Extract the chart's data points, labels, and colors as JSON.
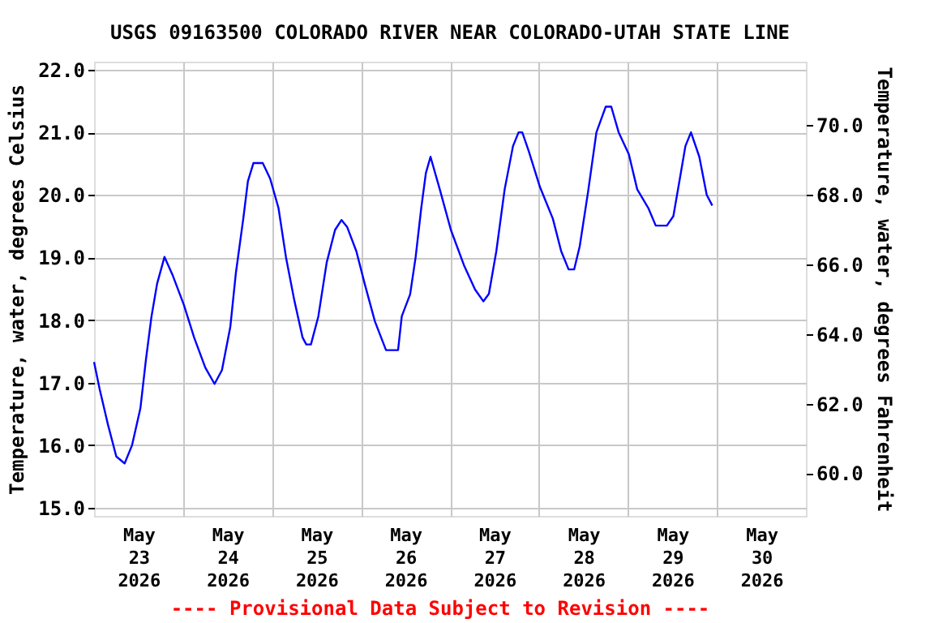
{
  "chart_data": {
    "type": "line",
    "title": "USGS 09163500 COLORADO RIVER NEAR COLORADO-UTAH STATE LINE",
    "xlabel": null,
    "ylabel": "Temperature, water, degrees Celsius",
    "y2label": "Temperature, water, degrees Fahrenheit",
    "x": [
      "2026-05-23T00:00",
      "2026-05-23T01:30",
      "2026-05-23T03:45",
      "2026-05-23T06:00",
      "2026-05-23T08:15",
      "2026-05-23T10:15",
      "2026-05-23T12:30",
      "2026-05-23T14:00",
      "2026-05-23T15:30",
      "2026-05-23T17:00",
      "2026-05-23T19:00",
      "2026-05-23T21:15",
      "2026-05-24T00:15",
      "2026-05-24T03:00",
      "2026-05-24T06:00",
      "2026-05-24T08:30",
      "2026-05-24T10:30",
      "2026-05-24T12:45",
      "2026-05-24T14:15",
      "2026-05-24T16:15",
      "2026-05-24T17:30",
      "2026-05-24T19:00",
      "2026-05-24T21:30",
      "2026-05-24T23:30",
      "2026-05-25T01:45",
      "2026-05-25T03:45",
      "2026-05-25T06:00",
      "2026-05-25T08:15",
      "2026-05-25T09:15",
      "2026-05-25T10:30",
      "2026-05-25T12:30",
      "2026-05-25T14:45",
      "2026-05-25T17:00",
      "2026-05-25T18:45",
      "2026-05-25T20:15",
      "2026-05-25T22:45",
      "2026-05-26T01:00",
      "2026-05-26T03:45",
      "2026-05-26T06:45",
      "2026-05-26T10:00",
      "2026-05-26T11:00",
      "2026-05-26T13:15",
      "2026-05-26T14:45",
      "2026-05-26T16:15",
      "2026-05-26T17:30",
      "2026-05-26T18:45",
      "2026-05-26T21:15",
      "2026-05-27T00:15",
      "2026-05-27T03:45",
      "2026-05-27T06:45",
      "2026-05-27T09:00",
      "2026-05-27T10:30",
      "2026-05-27T12:30",
      "2026-05-27T14:45",
      "2026-05-27T17:00",
      "2026-05-27T18:30",
      "2026-05-27T19:30",
      "2026-05-27T21:15",
      "2026-05-28T00:15",
      "2026-05-28T03:45",
      "2026-05-28T06:00",
      "2026-05-28T08:00",
      "2026-05-28T09:30",
      "2026-05-28T11:00",
      "2026-05-28T13:15",
      "2026-05-28T15:30",
      "2026-05-28T18:00",
      "2026-05-28T19:30",
      "2026-05-28T21:30",
      "2026-05-29T00:15",
      "2026-05-29T02:30",
      "2026-05-29T05:30",
      "2026-05-29T07:30",
      "2026-05-29T10:30",
      "2026-05-29T12:15",
      "2026-05-29T14:00",
      "2026-05-29T15:30",
      "2026-05-29T17:00",
      "2026-05-29T19:15",
      "2026-05-29T21:15",
      "2026-05-29T22:45"
    ],
    "series": [
      {
        "color": "#0000ff",
        "values": [
          17.33,
          16.9,
          16.33,
          15.82,
          15.71,
          16.0,
          16.59,
          17.37,
          18.06,
          18.58,
          19.01,
          18.71,
          18.24,
          17.72,
          17.24,
          16.98,
          17.2,
          17.89,
          18.75,
          19.62,
          20.22,
          20.51,
          20.51,
          20.26,
          19.79,
          19.01,
          18.32,
          17.72,
          17.61,
          17.61,
          18.06,
          18.92,
          19.44,
          19.6,
          19.49,
          19.1,
          18.58,
          17.98,
          17.52,
          17.52,
          18.06,
          18.41,
          19.01,
          19.79,
          20.35,
          20.61,
          20.09,
          19.44,
          18.88,
          18.49,
          18.3,
          18.42,
          19.1,
          20.09,
          20.78,
          21.0,
          21.0,
          20.7,
          20.13,
          19.62,
          19.1,
          18.81,
          18.81,
          19.18,
          20.05,
          21.0,
          21.41,
          21.41,
          21.0,
          20.65,
          20.09,
          19.79,
          19.51,
          19.51,
          19.66,
          20.26,
          20.78,
          21.0,
          20.61,
          20.0,
          19.83
        ]
      }
    ],
    "xlim": [
      "2026-05-23T00:00",
      "2026-05-31T00:00"
    ],
    "xticks": [
      {
        "value": "2026-05-23T12:00",
        "label": "May\n23\n2026"
      },
      {
        "value": "2026-05-24T12:00",
        "label": "May\n24\n2026"
      },
      {
        "value": "2026-05-25T12:00",
        "label": "May\n25\n2026"
      },
      {
        "value": "2026-05-26T12:00",
        "label": "May\n26\n2026"
      },
      {
        "value": "2026-05-27T12:00",
        "label": "May\n27\n2026"
      },
      {
        "value": "2026-05-28T12:00",
        "label": "May\n28\n2026"
      },
      {
        "value": "2026-05-29T12:00",
        "label": "May\n29\n2026"
      },
      {
        "value": "2026-05-30T12:00",
        "label": "May\n30\n2026"
      },
      {
        "value": "2026-05-24T00:00",
        "label": null
      },
      {
        "value": "2026-05-25T00:00",
        "label": null
      },
      {
        "value": "2026-05-26T00:00",
        "label": null
      },
      {
        "value": "2026-05-27T00:00",
        "label": null
      },
      {
        "value": "2026-05-28T00:00",
        "label": null
      },
      {
        "value": "2026-05-29T00:00",
        "label": null
      },
      {
        "value": "2026-05-30T00:00",
        "label": null
      }
    ],
    "ylim": [
      14.87,
      22.13
    ],
    "yticks": [
      {
        "value": 15,
        "label": "15.0"
      },
      {
        "value": 16,
        "label": "16.0"
      },
      {
        "value": 17,
        "label": "17.0"
      },
      {
        "value": 18,
        "label": "18.0"
      },
      {
        "value": 19,
        "label": "19.0"
      },
      {
        "value": 20,
        "label": "20.0"
      },
      {
        "value": 21,
        "label": "21.0"
      },
      {
        "value": 22,
        "label": "22.0"
      }
    ],
    "y2lim": [
      58.77,
      71.83
    ],
    "y2ticks": [
      {
        "value": 60,
        "label": "60.0"
      },
      {
        "value": 62,
        "label": "62.0"
      },
      {
        "value": 64,
        "label": "64.0"
      },
      {
        "value": 66,
        "label": "66.0"
      },
      {
        "value": 68,
        "label": "68.0"
      },
      {
        "value": 70,
        "label": "70.0"
      }
    ],
    "grid": true,
    "marker": "none",
    "line_style": "solid",
    "annotations": [
      "---- Provisional Data Subject to Revision ----"
    ]
  }
}
